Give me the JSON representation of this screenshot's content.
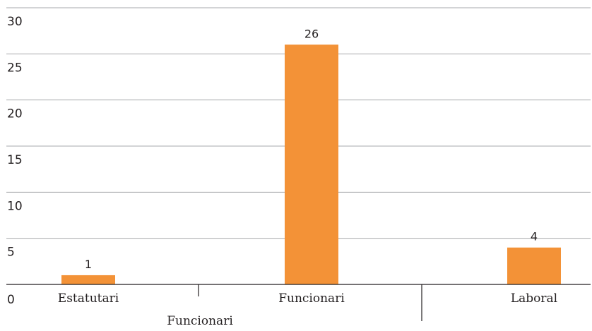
{
  "chart_data": {
    "type": "bar",
    "categories": [
      "Estatutari",
      "Funcionari",
      "Laboral"
    ],
    "values": [
      1,
      26,
      4
    ],
    "data_labels": [
      "1",
      "26",
      "4"
    ],
    "y_ticks": [
      "0",
      "5",
      "10",
      "15",
      "20",
      "25",
      "30"
    ],
    "ylim": [
      0,
      30
    ],
    "xlabel": "Funcionari",
    "ylabel": "",
    "title": "",
    "grid": true,
    "bar_color": "#f39237",
    "grid_color": "#a7a9ac",
    "axis_color": "#231f20"
  }
}
